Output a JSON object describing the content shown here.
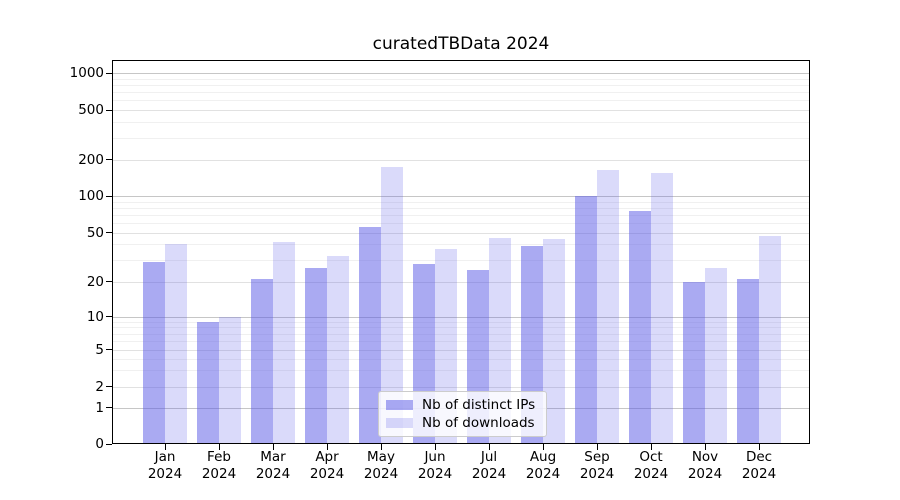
{
  "chart_data": {
    "type": "bar",
    "title": "curatedTBData 2024",
    "categories": [
      "Jan",
      "Feb",
      "Mar",
      "Apr",
      "May",
      "Jun",
      "Jul",
      "Aug",
      "Sep",
      "Oct",
      "Nov",
      "Dec"
    ],
    "x_tick_second_line": "2024",
    "series": [
      {
        "name": "Nb of distinct IPs",
        "color": "rgba(85,85,230,0.5)",
        "values": [
          29,
          9,
          21,
          26,
          56,
          28,
          25,
          39,
          100,
          76,
          20,
          21
        ]
      },
      {
        "name": "Nb of downloads",
        "color": "rgba(85,85,230,0.22)",
        "values": [
          40,
          10,
          42,
          32,
          175,
          37,
          45,
          44,
          163,
          156,
          26,
          47
        ]
      }
    ],
    "y_axis": {
      "scale": "asinh",
      "ticks": [
        0,
        1,
        2,
        5,
        10,
        20,
        50,
        100,
        200,
        500,
        1000
      ],
      "tick_labels": [
        "0",
        "1",
        "2",
        "5",
        "10",
        "20",
        "50",
        "100",
        "200",
        "500",
        "1000"
      ],
      "major_tick_values": [
        1,
        10,
        100,
        1000
      ]
    },
    "grid": {
      "major": true,
      "minor": true
    },
    "legend": {
      "position": "lower center"
    },
    "accent_color": "#5555e6"
  }
}
